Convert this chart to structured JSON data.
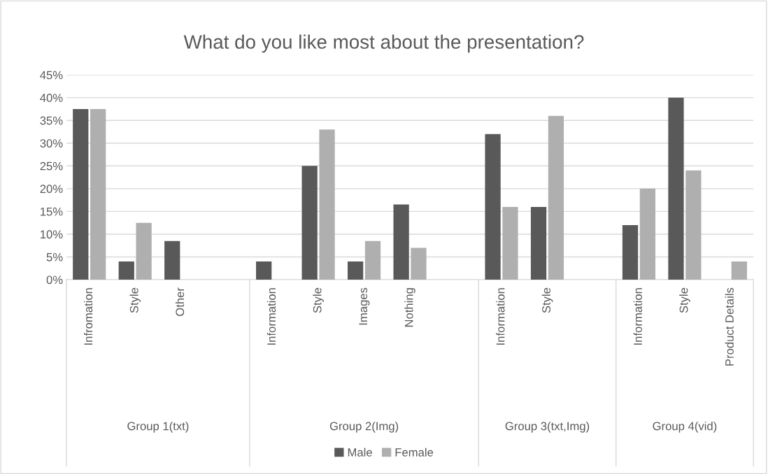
{
  "chart_data": {
    "type": "bar",
    "title": "What do you like most about the presentation?",
    "categories": [
      "Infromation",
      "Style",
      "Other",
      null,
      "Information",
      "Style",
      "Images",
      "Nothing",
      null,
      "Information",
      "Style",
      null,
      "Information",
      "Style",
      "Product Details"
    ],
    "series": [
      {
        "name": "Male",
        "color": "#595959",
        "values": [
          37.5,
          4,
          8.5,
          null,
          4,
          25,
          4,
          16.5,
          null,
          32,
          16,
          null,
          12,
          40,
          0
        ]
      },
      {
        "name": "Female",
        "color": "#afafaf",
        "values": [
          37.5,
          12.5,
          0,
          null,
          0,
          33,
          8.5,
          7,
          null,
          16,
          36,
          null,
          20,
          24,
          4
        ]
      }
    ],
    "ylim": [
      0,
      45
    ],
    "yticks": [
      {
        "value": 0,
        "label": "0%"
      },
      {
        "value": 5,
        "label": "5%"
      },
      {
        "value": 10,
        "label": "10%"
      },
      {
        "value": 15,
        "label": "15%"
      },
      {
        "value": 20,
        "label": "20%"
      },
      {
        "value": 25,
        "label": "25%"
      },
      {
        "value": 30,
        "label": "30%"
      },
      {
        "value": 35,
        "label": "35%"
      },
      {
        "value": 40,
        "label": "40%"
      },
      {
        "value": 45,
        "label": "45%"
      }
    ],
    "annotations": [
      "Group 1(txt)",
      "Group 2(Img)",
      "Group 3(txt,Img)",
      "Group 4(vid)"
    ],
    "grid": "y",
    "legend": "bottom"
  }
}
